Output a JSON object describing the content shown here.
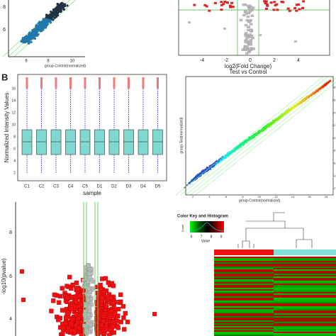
{
  "panel_a_scatter": {
    "yticks": [
      "8",
      "6"
    ],
    "xticks": [
      "6",
      "8",
      "10"
    ],
    "xlabel": "group-Control(normalized)"
  },
  "panel_a_volcano": {
    "xticks": [
      "-4",
      "-2",
      "0",
      "2",
      "4"
    ],
    "xlabel": "log2(Fold Change)",
    "subtitle": "Test vs Control"
  },
  "panel_b_box": {
    "panel_label": "B",
    "ylabel": "Normalized Intensity Values",
    "yticks": [
      "2",
      "4",
      "6",
      "8",
      "10",
      "12",
      "14",
      "16"
    ],
    "categories": [
      "C1",
      "C2",
      "C3",
      "C4",
      "C5",
      "D1",
      "D2",
      "D3",
      "D4",
      "D5"
    ],
    "xlabel": "sample"
  },
  "panel_b_scatter": {
    "yticks": [
      "2",
      "4",
      "6",
      "8",
      "10",
      "12",
      "14",
      "16",
      "18"
    ],
    "xticks": [
      "2",
      "4",
      "6",
      "8",
      "10",
      "12",
      "14",
      "16",
      "18"
    ],
    "xlabel": "group-Control(normalized)",
    "ylabel": "group-Test(normalized)"
  },
  "panel_c_volcano": {
    "yticks": [
      "8",
      "6",
      "4"
    ],
    "ylabel": "-log10(pvalue)"
  },
  "panel_c_heatmap": {
    "key_title": "Color Key and Histogram",
    "key_ticks": [
      "6",
      "7",
      "8",
      "9"
    ],
    "key_xlabel": "Value",
    "key_ylabel": "Count"
  }
}
